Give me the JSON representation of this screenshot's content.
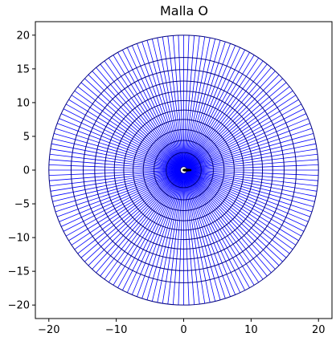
{
  "chart_data": {
    "type": "line",
    "title": "Malla O",
    "xlabel": "",
    "ylabel": "",
    "xlim": [
      -22,
      22
    ],
    "ylim": [
      -22,
      22
    ],
    "xticks": [
      -20,
      -10,
      0,
      10,
      20
    ],
    "yticks": [
      -20,
      -15,
      -10,
      -5,
      0,
      5,
      10,
      15,
      20
    ],
    "xtick_labels": [
      "−20",
      "−10",
      "0",
      "10",
      "20"
    ],
    "ytick_labels": [
      "−20",
      "−15",
      "−10",
      "−5",
      "0",
      "5",
      "10",
      "15",
      "20"
    ],
    "grid": false,
    "series": [
      {
        "kind": "radial_lines",
        "color": "#0000ff",
        "count": 160,
        "r_inner": 0.5,
        "r_outer": 20
      },
      {
        "kind": "circles",
        "color": "#000080",
        "radii": [
          0.5,
          2.6,
          4.4,
          6.0,
          7.5,
          8.9,
          10.3,
          11.7,
          13.2,
          14.9,
          16.7,
          20.0
        ]
      }
    ],
    "airfoil": {
      "color": "#000000",
      "x_range": [
        0,
        1
      ],
      "thickness": 0.12
    }
  }
}
